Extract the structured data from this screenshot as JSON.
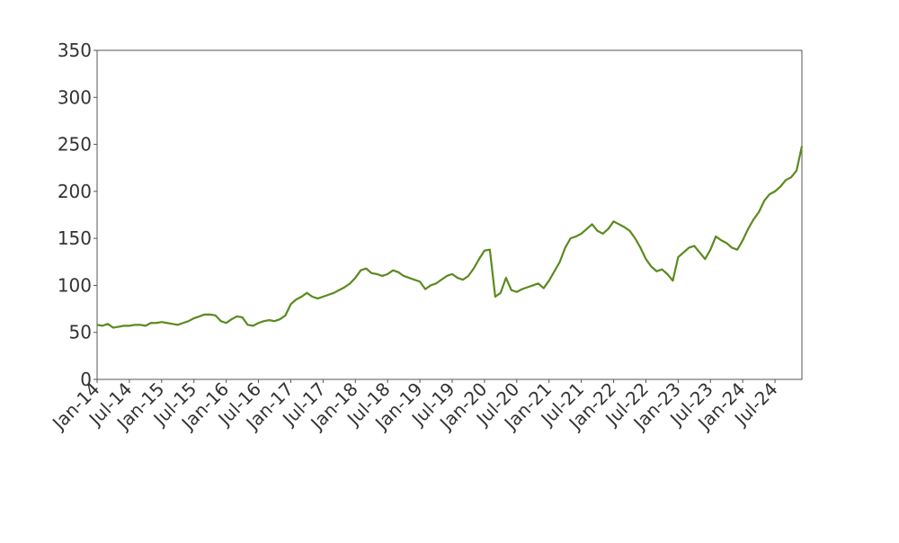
{
  "chart_data": {
    "type": "line",
    "color": "#5a8a1e",
    "xlim": [
      "2014-01",
      "2024-12"
    ],
    "ylim": [
      0,
      350
    ],
    "yticks": [
      0,
      50,
      100,
      150,
      200,
      250,
      300,
      350
    ],
    "xticks": [
      {
        "value": "2014-01",
        "label": "Jan-14"
      },
      {
        "value": "2014-07",
        "label": "Jul-14"
      },
      {
        "value": "2015-01",
        "label": "Jan-15"
      },
      {
        "value": "2015-07",
        "label": "Jul-15"
      },
      {
        "value": "2016-01",
        "label": "Jan-16"
      },
      {
        "value": "2016-07",
        "label": "Jul-16"
      },
      {
        "value": "2017-01",
        "label": "Jan-17"
      },
      {
        "value": "2017-07",
        "label": "Jul-17"
      },
      {
        "value": "2018-01",
        "label": "Jan-18"
      },
      {
        "value": "2018-07",
        "label": "Jul-18"
      },
      {
        "value": "2019-01",
        "label": "Jan-19"
      },
      {
        "value": "2019-07",
        "label": "Jul-19"
      },
      {
        "value": "2020-01",
        "label": "Jan-20"
      },
      {
        "value": "2020-07",
        "label": "Jul-20"
      },
      {
        "value": "2021-01",
        "label": "Jan-21"
      },
      {
        "value": "2021-07",
        "label": "Jul-21"
      },
      {
        "value": "2022-01",
        "label": "Jan-22"
      },
      {
        "value": "2022-07",
        "label": "Jul-22"
      },
      {
        "value": "2023-01",
        "label": "Jan-23"
      },
      {
        "value": "2023-07",
        "label": "Jul-23"
      },
      {
        "value": "2024-01",
        "label": "Jan-24"
      },
      {
        "value": "2024-07",
        "label": "Jul-24"
      }
    ],
    "x": [
      "2014-01",
      "2014-02",
      "2014-03",
      "2014-04",
      "2014-05",
      "2014-06",
      "2014-07",
      "2014-08",
      "2014-09",
      "2014-10",
      "2014-11",
      "2014-12",
      "2015-01",
      "2015-02",
      "2015-03",
      "2015-04",
      "2015-05",
      "2015-06",
      "2015-07",
      "2015-08",
      "2015-09",
      "2015-10",
      "2015-11",
      "2015-12",
      "2016-01",
      "2016-02",
      "2016-03",
      "2016-04",
      "2016-05",
      "2016-06",
      "2016-07",
      "2016-08",
      "2016-09",
      "2016-10",
      "2016-11",
      "2016-12",
      "2017-01",
      "2017-02",
      "2017-03",
      "2017-04",
      "2017-05",
      "2017-06",
      "2017-07",
      "2017-08",
      "2017-09",
      "2017-10",
      "2017-11",
      "2017-12",
      "2018-01",
      "2018-02",
      "2018-03",
      "2018-04",
      "2018-05",
      "2018-06",
      "2018-07",
      "2018-08",
      "2018-09",
      "2018-10",
      "2018-11",
      "2018-12",
      "2019-01",
      "2019-02",
      "2019-03",
      "2019-04",
      "2019-05",
      "2019-06",
      "2019-07",
      "2019-08",
      "2019-09",
      "2019-10",
      "2019-11",
      "2019-12",
      "2020-01",
      "2020-02",
      "2020-03",
      "2020-04",
      "2020-05",
      "2020-06",
      "2020-07",
      "2020-08",
      "2020-09",
      "2020-10",
      "2020-11",
      "2020-12",
      "2021-01",
      "2021-02",
      "2021-03",
      "2021-04",
      "2021-05",
      "2021-06",
      "2021-07",
      "2021-08",
      "2021-09",
      "2021-10",
      "2021-11",
      "2021-12",
      "2022-01",
      "2022-02",
      "2022-03",
      "2022-04",
      "2022-05",
      "2022-06",
      "2022-07",
      "2022-08",
      "2022-09",
      "2022-10",
      "2022-11",
      "2022-12",
      "2023-01",
      "2023-02",
      "2023-03",
      "2023-04",
      "2023-05",
      "2023-06",
      "2023-07",
      "2023-08",
      "2023-09",
      "2023-10",
      "2023-11",
      "2023-12",
      "2024-01",
      "2024-02",
      "2024-03",
      "2024-04",
      "2024-05",
      "2024-06",
      "2024-07",
      "2024-08",
      "2024-09",
      "2024-10",
      "2024-11",
      "2024-12"
    ],
    "values": [
      58,
      57,
      59,
      55,
      56,
      57,
      57,
      58,
      58,
      57,
      60,
      60,
      61,
      60,
      59,
      58,
      60,
      62,
      65,
      67,
      69,
      69,
      68,
      62,
      60,
      64,
      67,
      66,
      58,
      57,
      60,
      62,
      63,
      62,
      64,
      68,
      80,
      85,
      88,
      92,
      88,
      86,
      88,
      90,
      92,
      95,
      98,
      102,
      108,
      116,
      118,
      113,
      112,
      110,
      112,
      116,
      114,
      110,
      108,
      106,
      104,
      96,
      100,
      102,
      106,
      110,
      112,
      108,
      106,
      110,
      118,
      128,
      137,
      138,
      88,
      92,
      108,
      95,
      93,
      96,
      98,
      100,
      102,
      97,
      105,
      115,
      125,
      140,
      150,
      152,
      155,
      160,
      165,
      158,
      155,
      160,
      168,
      165,
      162,
      158,
      150,
      140,
      128,
      120,
      115,
      117,
      112,
      105,
      130,
      135,
      140,
      142,
      135,
      128,
      138,
      152,
      148,
      145,
      140,
      138,
      148,
      160,
      170,
      178,
      190,
      197,
      200,
      205,
      212,
      215,
      222,
      248
    ]
  }
}
